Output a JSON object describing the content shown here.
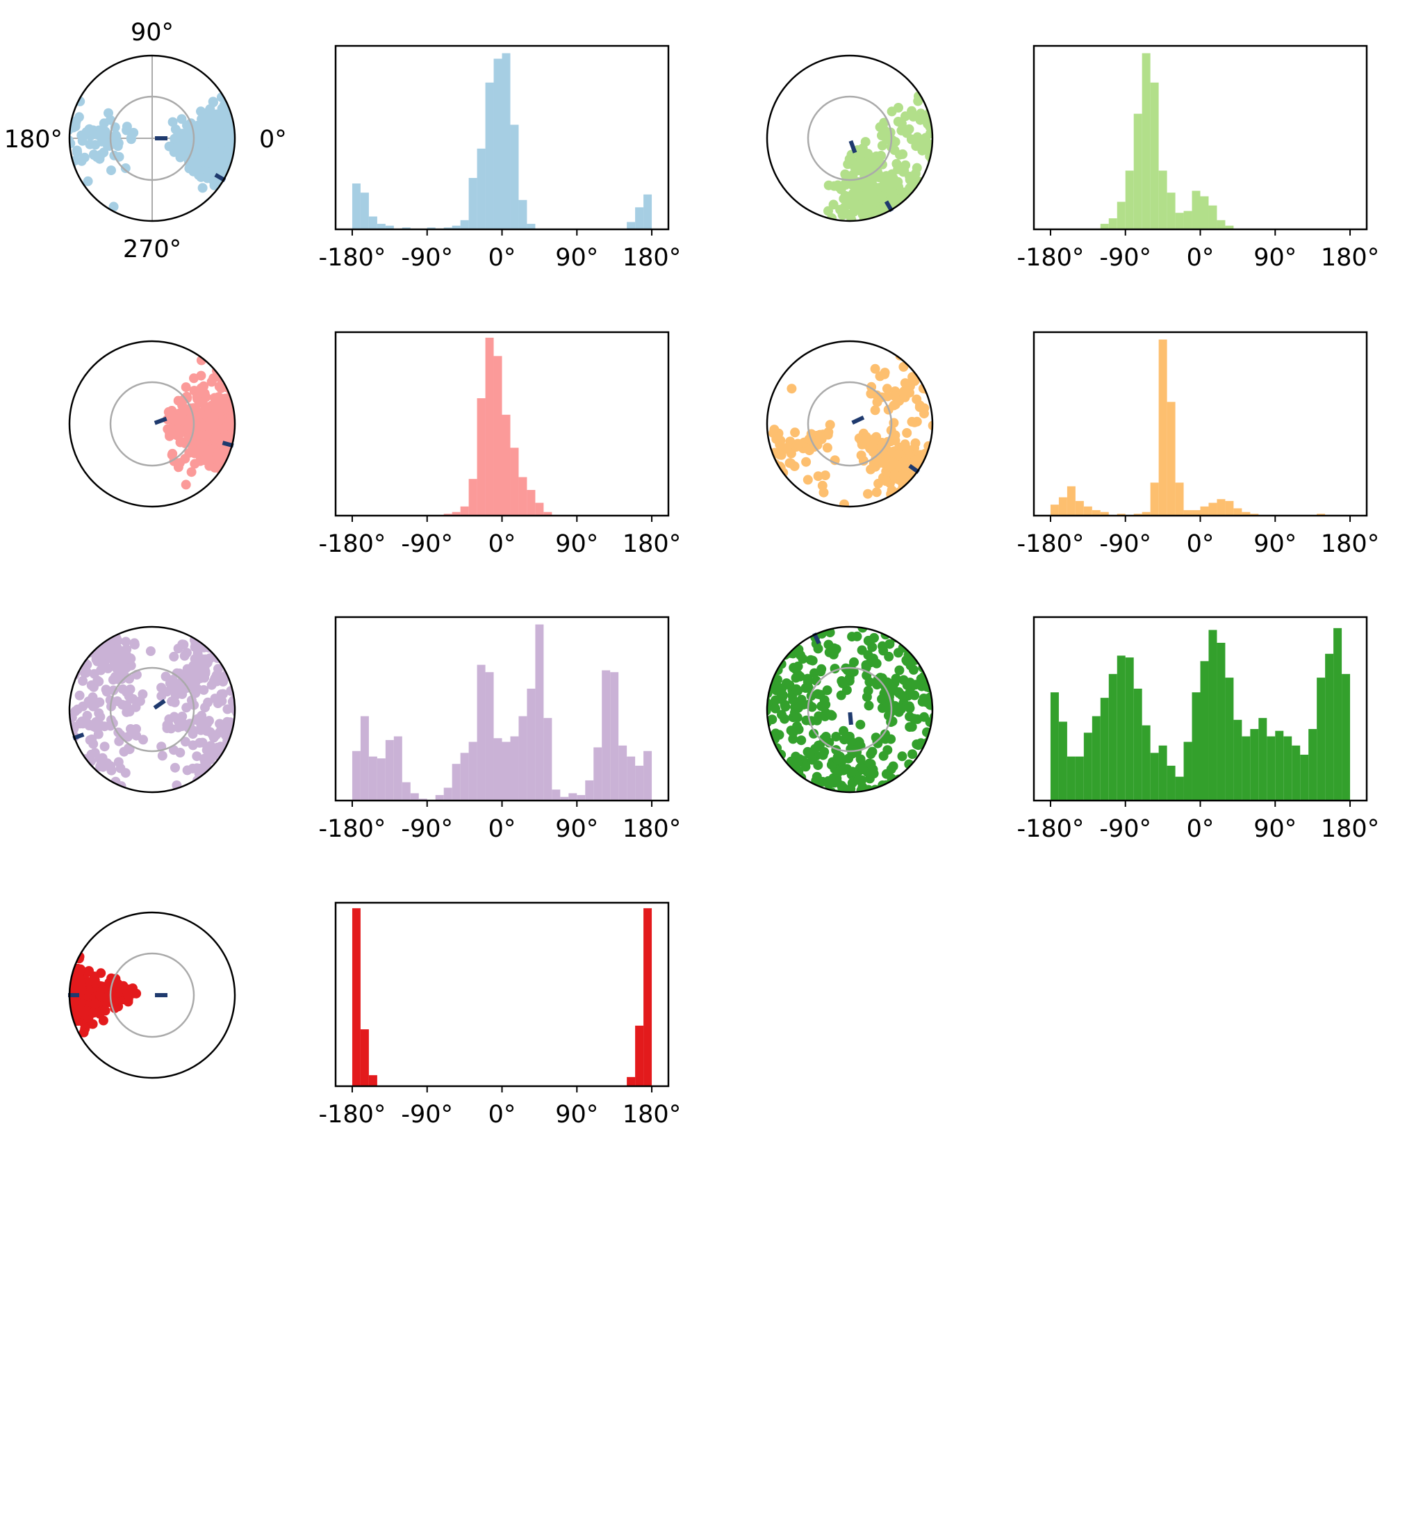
{
  "styles": {
    "mean_marker_color": "#1f3a6e",
    "reference_circle_color": "#aaaaaa",
    "axes_color": "#000000"
  },
  "polar_labels": {
    "top": "90°",
    "left": "180°",
    "right": "0°",
    "bottom": "270°"
  },
  "chart_data": [
    {
      "type": "polar_scatter + histogram",
      "color": "#a6cee3",
      "mean_marker_angles": [
        0,
        -30
      ],
      "polar_axis_labels": true,
      "hist": {
        "xlim": [
          -200,
          200
        ],
        "xticks": [
          "-180°",
          "-90°",
          "0°",
          "90°",
          "180°"
        ],
        "bin_width": 10,
        "counts": [
          {
            "c": -175,
            "h": 0.25
          },
          {
            "c": -165,
            "h": 0.2
          },
          {
            "c": -155,
            "h": 0.07
          },
          {
            "c": -145,
            "h": 0.03
          },
          {
            "c": -135,
            "h": 0.02
          },
          {
            "c": -115,
            "h": 0.01
          },
          {
            "c": -85,
            "h": 0.01
          },
          {
            "c": -65,
            "h": 0.01
          },
          {
            "c": -55,
            "h": 0.02
          },
          {
            "c": -45,
            "h": 0.05
          },
          {
            "c": -35,
            "h": 0.28
          },
          {
            "c": -25,
            "h": 0.44
          },
          {
            "c": -15,
            "h": 0.8
          },
          {
            "c": -5,
            "h": 0.93
          },
          {
            "c": 5,
            "h": 0.96
          },
          {
            "c": 15,
            "h": 0.57
          },
          {
            "c": 25,
            "h": 0.16
          },
          {
            "c": 35,
            "h": 0.03
          },
          {
            "c": 155,
            "h": 0.04
          },
          {
            "c": 165,
            "h": 0.12
          },
          {
            "c": 175,
            "h": 0.19
          }
        ]
      }
    },
    {
      "type": "polar_scatter + histogram",
      "color": "#b2df8a",
      "mean_marker_angles": [
        -70,
        -60
      ],
      "hist": {
        "xlim": [
          -200,
          200
        ],
        "xticks": [
          "-180°",
          "-90°",
          "0°",
          "90°",
          "180°"
        ],
        "bin_width": 10,
        "counts": [
          {
            "c": -115,
            "h": 0.03
          },
          {
            "c": -105,
            "h": 0.06
          },
          {
            "c": -95,
            "h": 0.15
          },
          {
            "c": -85,
            "h": 0.32
          },
          {
            "c": -75,
            "h": 0.63
          },
          {
            "c": -65,
            "h": 0.96
          },
          {
            "c": -55,
            "h": 0.8
          },
          {
            "c": -45,
            "h": 0.32
          },
          {
            "c": -35,
            "h": 0.2
          },
          {
            "c": -25,
            "h": 0.09
          },
          {
            "c": -15,
            "h": 0.1
          },
          {
            "c": -5,
            "h": 0.21
          },
          {
            "c": 5,
            "h": 0.18
          },
          {
            "c": 15,
            "h": 0.13
          },
          {
            "c": 25,
            "h": 0.05
          },
          {
            "c": 35,
            "h": 0.02
          }
        ]
      }
    },
    {
      "type": "polar_scatter + histogram",
      "color": "#fb9a99",
      "mean_marker_angles": [
        20,
        -15
      ],
      "hist": {
        "xlim": [
          -200,
          200
        ],
        "xticks": [
          "-180°",
          "-90°",
          "0°",
          "90°",
          "180°"
        ],
        "bin_width": 10,
        "counts": [
          {
            "c": -65,
            "h": 0.01
          },
          {
            "c": -55,
            "h": 0.02
          },
          {
            "c": -45,
            "h": 0.05
          },
          {
            "c": -35,
            "h": 0.2
          },
          {
            "c": -25,
            "h": 0.64
          },
          {
            "c": -15,
            "h": 0.97
          },
          {
            "c": -5,
            "h": 0.87
          },
          {
            "c": 5,
            "h": 0.55
          },
          {
            "c": 15,
            "h": 0.37
          },
          {
            "c": 25,
            "h": 0.21
          },
          {
            "c": 35,
            "h": 0.14
          },
          {
            "c": 45,
            "h": 0.07
          },
          {
            "c": 55,
            "h": 0.02
          }
        ]
      }
    },
    {
      "type": "polar_scatter + histogram",
      "color": "#fdbf6f",
      "mean_marker_angles": [
        25,
        -35
      ],
      "hist": {
        "xlim": [
          -200,
          200
        ],
        "xticks": [
          "-180°",
          "-90°",
          "0°",
          "90°",
          "180°"
        ],
        "bin_width": 10,
        "counts": [
          {
            "c": -175,
            "h": 0.06
          },
          {
            "c": -165,
            "h": 0.1
          },
          {
            "c": -155,
            "h": 0.16
          },
          {
            "c": -145,
            "h": 0.08
          },
          {
            "c": -135,
            "h": 0.05
          },
          {
            "c": -125,
            "h": 0.03
          },
          {
            "c": -115,
            "h": 0.02
          },
          {
            "c": -95,
            "h": 0.01
          },
          {
            "c": -75,
            "h": 0.01
          },
          {
            "c": -65,
            "h": 0.02
          },
          {
            "c": -55,
            "h": 0.18
          },
          {
            "c": -45,
            "h": 0.96
          },
          {
            "c": -35,
            "h": 0.62
          },
          {
            "c": -25,
            "h": 0.18
          },
          {
            "c": -15,
            "h": 0.03
          },
          {
            "c": -5,
            "h": 0.03
          },
          {
            "c": 5,
            "h": 0.05
          },
          {
            "c": 15,
            "h": 0.07
          },
          {
            "c": 25,
            "h": 0.09
          },
          {
            "c": 35,
            "h": 0.08
          },
          {
            "c": 45,
            "h": 0.04
          },
          {
            "c": 55,
            "h": 0.02
          },
          {
            "c": 65,
            "h": 0.01
          },
          {
            "c": 145,
            "h": 0.01
          }
        ]
      }
    },
    {
      "type": "polar_scatter + histogram",
      "color": "#cab2d6",
      "mean_marker_angles": [
        35,
        200
      ],
      "hist": {
        "xlim": [
          -200,
          200
        ],
        "xticks": [
          "-180°",
          "-90°",
          "0°",
          "90°",
          "180°"
        ],
        "bin_width": 10,
        "counts": [
          {
            "c": -175,
            "h": 0.27
          },
          {
            "c": -165,
            "h": 0.46
          },
          {
            "c": -155,
            "h": 0.24
          },
          {
            "c": -145,
            "h": 0.23
          },
          {
            "c": -135,
            "h": 0.33
          },
          {
            "c": -125,
            "h": 0.35
          },
          {
            "c": -115,
            "h": 0.1
          },
          {
            "c": -105,
            "h": 0.04
          },
          {
            "c": -95,
            "h": 0.01
          },
          {
            "c": -75,
            "h": 0.03
          },
          {
            "c": -65,
            "h": 0.07
          },
          {
            "c": -55,
            "h": 0.2
          },
          {
            "c": -45,
            "h": 0.26
          },
          {
            "c": -35,
            "h": 0.32
          },
          {
            "c": -25,
            "h": 0.74
          },
          {
            "c": -15,
            "h": 0.7
          },
          {
            "c": -5,
            "h": 0.34
          },
          {
            "c": 5,
            "h": 0.32
          },
          {
            "c": 15,
            "h": 0.35
          },
          {
            "c": 25,
            "h": 0.46
          },
          {
            "c": 35,
            "h": 0.61
          },
          {
            "c": 45,
            "h": 0.96
          },
          {
            "c": 55,
            "h": 0.45
          },
          {
            "c": 65,
            "h": 0.06
          },
          {
            "c": 75,
            "h": 0.02
          },
          {
            "c": 85,
            "h": 0.04
          },
          {
            "c": 95,
            "h": 0.03
          },
          {
            "c": 105,
            "h": 0.11
          },
          {
            "c": 115,
            "h": 0.29
          },
          {
            "c": 125,
            "h": 0.71
          },
          {
            "c": 135,
            "h": 0.7
          },
          {
            "c": 145,
            "h": 0.3
          },
          {
            "c": 155,
            "h": 0.24
          },
          {
            "c": 165,
            "h": 0.19
          },
          {
            "c": 175,
            "h": 0.27
          }
        ]
      }
    },
    {
      "type": "polar_scatter + histogram",
      "color": "#33a02c",
      "mean_marker_angles": [
        -85,
        115
      ],
      "hist": {
        "xlim": [
          -200,
          200
        ],
        "xticks": [
          "-180°",
          "-90°",
          "0°",
          "90°",
          "180°"
        ],
        "bin_width": 10,
        "counts": [
          {
            "c": -175,
            "h": 0.59
          },
          {
            "c": -165,
            "h": 0.43
          },
          {
            "c": -155,
            "h": 0.24
          },
          {
            "c": -145,
            "h": 0.24
          },
          {
            "c": -135,
            "h": 0.37
          },
          {
            "c": -125,
            "h": 0.46
          },
          {
            "c": -115,
            "h": 0.56
          },
          {
            "c": -105,
            "h": 0.69
          },
          {
            "c": -95,
            "h": 0.79
          },
          {
            "c": -85,
            "h": 0.78
          },
          {
            "c": -75,
            "h": 0.61
          },
          {
            "c": -65,
            "h": 0.41
          },
          {
            "c": -55,
            "h": 0.26
          },
          {
            "c": -45,
            "h": 0.3
          },
          {
            "c": -35,
            "h": 0.19
          },
          {
            "c": -25,
            "h": 0.13
          },
          {
            "c": -15,
            "h": 0.32
          },
          {
            "c": -5,
            "h": 0.59
          },
          {
            "c": 5,
            "h": 0.76
          },
          {
            "c": 15,
            "h": 0.93
          },
          {
            "c": 25,
            "h": 0.86
          },
          {
            "c": 35,
            "h": 0.67
          },
          {
            "c": 45,
            "h": 0.44
          },
          {
            "c": 55,
            "h": 0.35
          },
          {
            "c": 65,
            "h": 0.39
          },
          {
            "c": 75,
            "h": 0.45
          },
          {
            "c": 85,
            "h": 0.35
          },
          {
            "c": 95,
            "h": 0.38
          },
          {
            "c": 105,
            "h": 0.35
          },
          {
            "c": 115,
            "h": 0.3
          },
          {
            "c": 125,
            "h": 0.25
          },
          {
            "c": 135,
            "h": 0.39
          },
          {
            "c": 145,
            "h": 0.67
          },
          {
            "c": 155,
            "h": 0.8
          },
          {
            "c": 165,
            "h": 0.94
          },
          {
            "c": 175,
            "h": 0.69
          }
        ]
      }
    },
    {
      "type": "polar_scatter + histogram",
      "color": "#e31a1c",
      "mean_marker_angles": [
        0,
        180
      ],
      "hist": {
        "xlim": [
          -200,
          200
        ],
        "xticks": [
          "-180°",
          "-90°",
          "0°",
          "90°",
          "180°"
        ],
        "bin_width": 10,
        "counts": [
          {
            "c": -175,
            "h": 0.97
          },
          {
            "c": -165,
            "h": 0.31
          },
          {
            "c": -155,
            "h": 0.06
          },
          {
            "c": 155,
            "h": 0.05
          },
          {
            "c": 165,
            "h": 0.33
          },
          {
            "c": 175,
            "h": 0.97
          }
        ]
      }
    }
  ]
}
